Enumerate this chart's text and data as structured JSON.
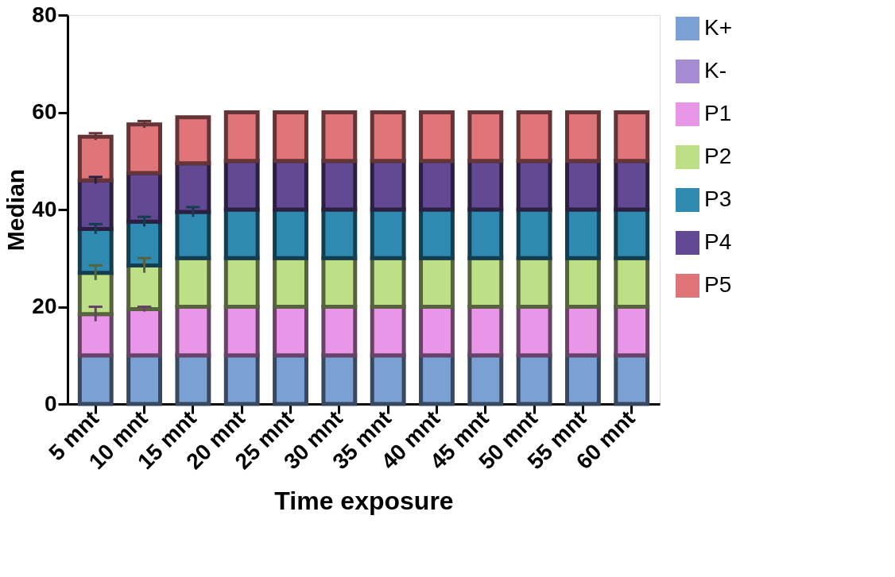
{
  "chart_data": {
    "type": "bar",
    "stacked": true,
    "xlabel": "Time exposure",
    "ylabel": "Median",
    "categories": [
      "5 mnt",
      "10 mnt",
      "15 mnt",
      "20 mnt",
      "25 mnt",
      "30 mnt",
      "35 mnt",
      "40 mnt",
      "45 mnt",
      "50 mnt",
      "55 mnt",
      "60 mnt"
    ],
    "series": [
      {
        "name": "K+",
        "color": "#7ba0d4",
        "values": [
          10,
          10,
          10,
          10,
          10,
          10,
          10,
          10,
          10,
          10,
          10,
          10
        ]
      },
      {
        "name": "K-",
        "color": "#a58bd1",
        "values": [
          null,
          null,
          null,
          null,
          null,
          null,
          null,
          null,
          null,
          null,
          null,
          null
        ]
      },
      {
        "name": "P1",
        "color": "#e996e8",
        "values": [
          8.5,
          9.5,
          10,
          10,
          10,
          10,
          10,
          10,
          10,
          10,
          10,
          10
        ],
        "errors": [
          1.5,
          0.5,
          null,
          null,
          null,
          null,
          null,
          null,
          null,
          null,
          null,
          null
        ]
      },
      {
        "name": "P2",
        "color": "#bddf86",
        "values": [
          8.5,
          9,
          10,
          10,
          10,
          10,
          10,
          10,
          10,
          10,
          10,
          10
        ],
        "errors": [
          1.5,
          1.5,
          null,
          null,
          null,
          null,
          null,
          null,
          null,
          null,
          null,
          null
        ]
      },
      {
        "name": "P3",
        "color": "#2e8ab1",
        "values": [
          9,
          9,
          9.5,
          10,
          10,
          10,
          10,
          10,
          10,
          10,
          10,
          10
        ],
        "errors": [
          1,
          1,
          1,
          null,
          null,
          null,
          null,
          null,
          null,
          null,
          null,
          null
        ]
      },
      {
        "name": "P4",
        "color": "#634893",
        "values": [
          10,
          10,
          10,
          10,
          10,
          10,
          10,
          10,
          10,
          10,
          10,
          10
        ],
        "errors": [
          0.7,
          null,
          null,
          null,
          null,
          null,
          null,
          null,
          null,
          null,
          null,
          null
        ]
      },
      {
        "name": "P5",
        "color": "#e07579",
        "values": [
          9,
          10,
          9.5,
          10,
          10,
          10,
          10,
          10,
          10,
          10,
          10,
          10
        ],
        "errors": [
          0.7,
          0.7,
          null,
          null,
          null,
          null,
          null,
          null,
          null,
          null,
          null,
          null
        ]
      }
    ],
    "ylim": [
      0,
      80
    ],
    "yticks": [
      0,
      20,
      40,
      60,
      80
    ],
    "grid": false,
    "legend": "right"
  }
}
